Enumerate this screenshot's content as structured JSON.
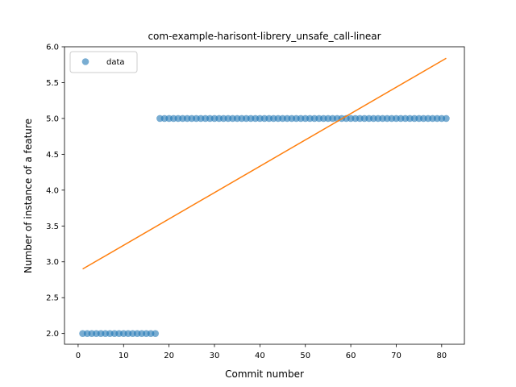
{
  "chart_data": {
    "type": "scatter",
    "title": "com-example-harisont-librery_unsafe_call-linear",
    "xlabel": "Commit number",
    "ylabel": "Number of instance of a feature",
    "xlim": [
      -3,
      85
    ],
    "ylim": [
      1.85,
      6.0
    ],
    "x_ticks": [
      0,
      10,
      20,
      30,
      40,
      50,
      60,
      70,
      80
    ],
    "x_tick_labels": [
      "0",
      "10",
      "20",
      "30",
      "40",
      "50",
      "60",
      "70",
      "80"
    ],
    "y_ticks": [
      2.0,
      2.5,
      3.0,
      3.5,
      4.0,
      4.5,
      5.0,
      5.5,
      6.0
    ],
    "y_tick_labels": [
      "2.0",
      "2.5",
      "3.0",
      "3.5",
      "4.0",
      "4.5",
      "5.0",
      "5.5",
      "6.0"
    ],
    "grid": false,
    "legend_position": "upper-left",
    "series": [
      {
        "name": "data",
        "kind": "scatter",
        "color": "#1f77b4",
        "x": [
          1,
          2,
          3,
          4,
          5,
          6,
          7,
          8,
          9,
          10,
          11,
          12,
          13,
          14,
          15,
          16,
          17,
          18,
          19,
          20,
          21,
          22,
          23,
          24,
          25,
          26,
          27,
          28,
          29,
          30,
          31,
          32,
          33,
          34,
          35,
          36,
          37,
          38,
          39,
          40,
          41,
          42,
          43,
          44,
          45,
          46,
          47,
          48,
          49,
          50,
          51,
          52,
          53,
          54,
          55,
          56,
          57,
          58,
          59,
          60,
          61,
          62,
          63,
          64,
          65,
          66,
          67,
          68,
          69,
          70,
          71,
          72,
          73,
          74,
          75,
          76,
          77,
          78,
          79,
          80,
          81
        ],
        "y": [
          2,
          2,
          2,
          2,
          2,
          2,
          2,
          2,
          2,
          2,
          2,
          2,
          2,
          2,
          2,
          2,
          2,
          5,
          5,
          5,
          5,
          5,
          5,
          5,
          5,
          5,
          5,
          5,
          5,
          5,
          5,
          5,
          5,
          5,
          5,
          5,
          5,
          5,
          5,
          5,
          5,
          5,
          5,
          5,
          5,
          5,
          5,
          5,
          5,
          5,
          5,
          5,
          5,
          5,
          5,
          5,
          5,
          5,
          5,
          5,
          5,
          5,
          5,
          5,
          5,
          5,
          5,
          5,
          5,
          5,
          5,
          5,
          5,
          5,
          5,
          5,
          5,
          5,
          5,
          5,
          5
        ]
      },
      {
        "kind": "line",
        "color": "#ff7f0e",
        "x": [
          1,
          81
        ],
        "y": [
          2.9,
          5.84
        ]
      }
    ]
  }
}
